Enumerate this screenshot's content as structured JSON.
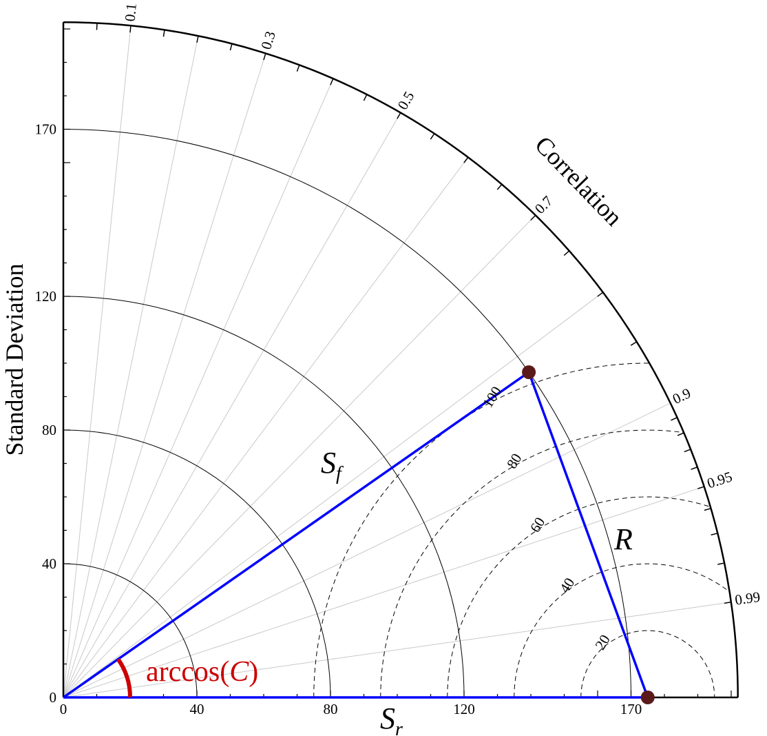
{
  "chart_data": {
    "type": "scatter",
    "subtype": "taylor-diagram",
    "ylabel": "Standard Deviation",
    "angular_label": "Correlation",
    "std_ticks": [
      0,
      40,
      80,
      120,
      170
    ],
    "std_max": 202,
    "std_arcs": [
      40,
      80,
      120,
      170
    ],
    "correlation_ticks": [
      "0.1",
      "0.3",
      "0.5",
      "0.7",
      "0.9",
      "0.95",
      "0.99"
    ],
    "rms_contours": [
      "20",
      "40",
      "60",
      "80",
      "100"
    ],
    "reference": {
      "std": 175,
      "correlation": 1.0
    },
    "forecast": {
      "std": 170,
      "correlation": 0.82
    },
    "labels": {
      "sf_main": "S",
      "sf_sub": "f",
      "sr_main": "S",
      "sr_sub": "r",
      "r": "R",
      "arccos_pre": "arccos(",
      "arccos_var": "C",
      "arccos_post": ")"
    },
    "colors": {
      "vectors": "#0000ff",
      "angle_arc": "#cc0000",
      "markers": "#5a1a1a",
      "std_arcs": "#000000",
      "corr_rays": "#c8c8c8"
    }
  }
}
